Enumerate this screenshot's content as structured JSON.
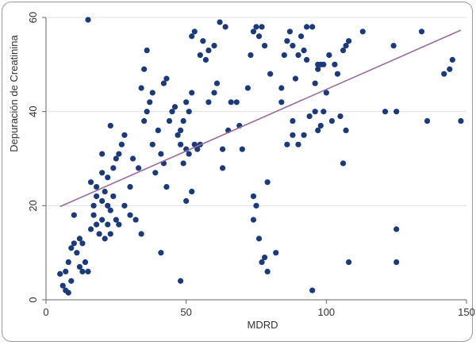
{
  "chart_data": {
    "type": "scatter",
    "title": "",
    "xlabel": "MDRD",
    "ylabel": "Depuración de Creatinina",
    "xlim": [
      0,
      150
    ],
    "ylim": [
      0,
      60
    ],
    "x_ticks": [
      0,
      50,
      100,
      150
    ],
    "y_ticks": [
      0,
      20,
      40,
      60
    ],
    "grid": "horizontal",
    "legend": "none",
    "colors": {
      "points": "#1a3a7a",
      "fit_line": "#9b6a9b",
      "grid": "#e3e3e3",
      "axis": "#666666"
    },
    "fit_line": {
      "x": [
        5,
        148
      ],
      "y": [
        19.8,
        57.3
      ]
    },
    "points": [
      [
        15,
        59.5
      ],
      [
        5,
        5.5
      ],
      [
        6,
        3
      ],
      [
        7,
        2
      ],
      [
        8,
        1.5
      ],
      [
        9,
        4
      ],
      [
        7,
        6
      ],
      [
        8,
        8
      ],
      [
        9,
        11
      ],
      [
        10,
        12
      ],
      [
        11,
        10
      ],
      [
        12,
        13
      ],
      [
        13,
        12
      ],
      [
        14,
        8
      ],
      [
        13,
        6
      ],
      [
        12,
        7
      ],
      [
        15,
        6
      ],
      [
        10,
        18
      ],
      [
        16,
        15
      ],
      [
        17,
        18
      ],
      [
        18,
        16
      ],
      [
        19,
        14
      ],
      [
        20,
        17
      ],
      [
        21,
        13
      ],
      [
        17,
        20
      ],
      [
        18,
        22
      ],
      [
        20,
        21
      ],
      [
        21,
        23
      ],
      [
        22,
        20
      ],
      [
        23,
        19
      ],
      [
        24,
        22
      ],
      [
        22,
        16
      ],
      [
        23,
        14
      ],
      [
        25,
        17
      ],
      [
        26,
        16
      ],
      [
        16,
        25
      ],
      [
        18,
        24
      ],
      [
        20,
        27
      ],
      [
        22,
        26
      ],
      [
        24,
        28
      ],
      [
        25,
        30
      ],
      [
        26,
        31
      ],
      [
        20,
        31
      ],
      [
        23,
        37
      ],
      [
        27,
        33
      ],
      [
        28,
        35
      ],
      [
        28,
        20
      ],
      [
        30,
        18
      ],
      [
        32,
        17
      ],
      [
        34,
        14
      ],
      [
        30,
        24
      ],
      [
        31,
        30
      ],
      [
        33,
        28
      ],
      [
        35,
        38
      ],
      [
        36,
        40
      ],
      [
        37,
        42
      ],
      [
        34,
        45
      ],
      [
        35,
        49
      ],
      [
        36,
        53
      ],
      [
        38,
        44
      ],
      [
        39,
        27
      ],
      [
        38,
        33
      ],
      [
        40,
        36
      ],
      [
        41,
        31
      ],
      [
        42,
        29
      ],
      [
        43,
        24
      ],
      [
        41,
        10
      ],
      [
        42,
        46
      ],
      [
        43,
        47
      ],
      [
        44,
        38
      ],
      [
        45,
        40
      ],
      [
        46,
        41
      ],
      [
        47,
        35
      ],
      [
        48,
        36
      ],
      [
        49,
        38
      ],
      [
        50,
        42
      ],
      [
        51,
        40
      ],
      [
        52,
        44
      ],
      [
        48,
        33
      ],
      [
        49,
        29
      ],
      [
        50,
        32
      ],
      [
        51,
        31
      ],
      [
        53,
        33
      ],
      [
        54,
        32
      ],
      [
        55,
        33
      ],
      [
        52,
        23
      ],
      [
        50,
        21
      ],
      [
        48,
        4
      ],
      [
        55,
        52
      ],
      [
        56,
        55
      ],
      [
        57,
        51
      ],
      [
        58,
        53
      ],
      [
        60,
        54
      ],
      [
        52,
        56
      ],
      [
        53,
        57
      ],
      [
        58,
        42
      ],
      [
        60,
        44
      ],
      [
        62,
        59
      ],
      [
        64,
        58
      ],
      [
        61,
        46
      ],
      [
        63,
        32
      ],
      [
        63,
        28
      ],
      [
        65,
        36
      ],
      [
        66,
        42
      ],
      [
        68,
        42
      ],
      [
        70,
        32
      ],
      [
        69,
        37
      ],
      [
        72,
        45
      ],
      [
        73,
        52
      ],
      [
        74,
        57
      ],
      [
        75,
        58
      ],
      [
        76,
        56
      ],
      [
        77,
        58
      ],
      [
        78,
        54
      ],
      [
        80,
        48
      ],
      [
        74,
        22
      ],
      [
        74,
        17
      ],
      [
        75,
        20
      ],
      [
        76,
        13
      ],
      [
        77,
        8
      ],
      [
        78,
        9
      ],
      [
        79,
        6
      ],
      [
        79,
        25
      ],
      [
        82,
        10
      ],
      [
        84,
        45
      ],
      [
        85,
        52
      ],
      [
        86,
        55
      ],
      [
        87,
        57
      ],
      [
        88,
        54
      ],
      [
        89,
        47
      ],
      [
        90,
        52
      ],
      [
        91,
        56
      ],
      [
        92,
        53
      ],
      [
        93,
        58
      ],
      [
        93,
        51
      ],
      [
        95,
        58
      ],
      [
        96,
        46
      ],
      [
        97,
        49
      ],
      [
        98,
        50
      ],
      [
        99,
        50
      ],
      [
        101,
        52
      ],
      [
        103,
        50
      ],
      [
        104,
        48
      ],
      [
        106,
        53
      ],
      [
        107,
        54
      ],
      [
        108,
        55
      ],
      [
        94,
        39
      ],
      [
        96,
        40
      ],
      [
        97,
        36
      ],
      [
        98,
        37
      ],
      [
        99,
        40
      ],
      [
        102,
        38
      ],
      [
        105,
        39
      ],
      [
        107,
        36
      ],
      [
        86,
        33
      ],
      [
        88,
        35
      ],
      [
        90,
        33
      ],
      [
        92,
        35
      ],
      [
        88,
        38
      ],
      [
        95,
        2
      ],
      [
        106,
        29
      ],
      [
        108,
        8
      ],
      [
        121,
        40
      ],
      [
        124,
        54
      ],
      [
        125,
        40
      ],
      [
        125,
        15
      ],
      [
        125,
        8
      ],
      [
        134,
        57
      ],
      [
        136,
        38
      ],
      [
        142,
        48
      ],
      [
        144,
        49
      ],
      [
        145,
        51
      ],
      [
        148,
        38
      ],
      [
        113,
        57
      ],
      [
        100,
        44
      ],
      [
        97,
        50
      ],
      [
        84,
        42
      ]
    ]
  }
}
